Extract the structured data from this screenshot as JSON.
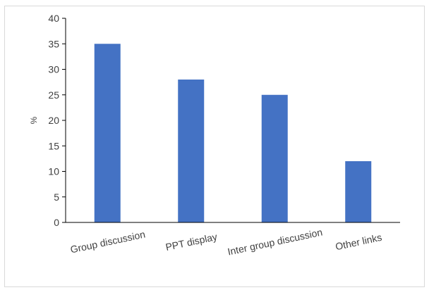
{
  "chart_data": {
    "type": "bar",
    "title": "",
    "xlabel": "",
    "ylabel": "%",
    "categories": [
      "Group discussion",
      "PPT display",
      "Inter group discussion",
      "Other links"
    ],
    "values": [
      35,
      28,
      25,
      12
    ],
    "ylim": [
      0,
      40
    ],
    "yticks": [
      0,
      5,
      10,
      15,
      20,
      25,
      30,
      35,
      40
    ],
    "grid": false,
    "legend": "none",
    "bar_color": "#4472c4"
  }
}
